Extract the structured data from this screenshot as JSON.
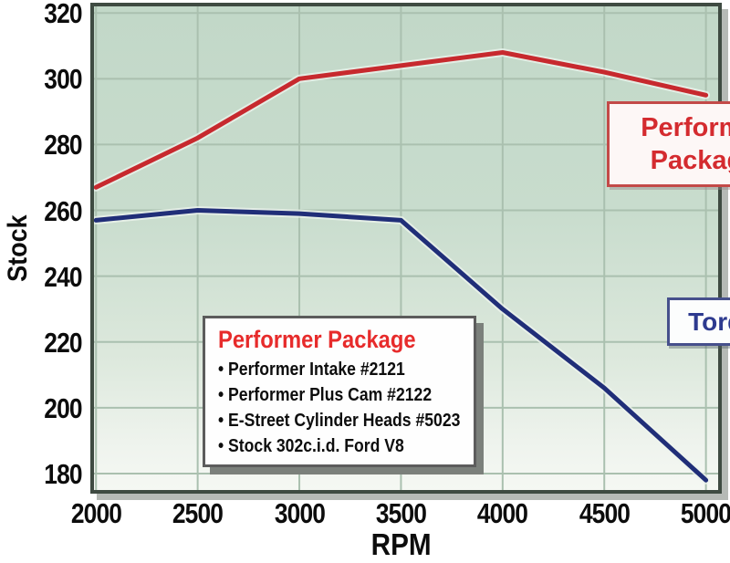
{
  "chart_data": {
    "type": "line",
    "title": "",
    "xlabel": "RPM",
    "ylabel": "Stock",
    "x": [
      2000,
      2500,
      3000,
      3500,
      4000,
      4500,
      5000
    ],
    "series": [
      {
        "name": "Performer Package",
        "color": "#c7292e",
        "values": [
          267,
          282,
          300,
          304,
          308,
          302,
          295
        ]
      },
      {
        "name": "Torque (Stock)",
        "color": "#202e78",
        "values": [
          257,
          260,
          259,
          257,
          230,
          206,
          178
        ]
      }
    ],
    "xticks": [
      2000,
      2500,
      3000,
      3500,
      4000,
      4500,
      5000
    ],
    "yticks": [
      180,
      200,
      220,
      240,
      260,
      280,
      300,
      320
    ],
    "xlim": [
      1990,
      5060
    ],
    "ylim": [
      175,
      322
    ],
    "grid": true,
    "legend_position": "lower-left",
    "plot_bg_top": "#c2d8c8",
    "plot_bg_bottom": "#f5f8f3",
    "grid_color": "#aac0af"
  },
  "annotations": {
    "performer_box": {
      "line1": "Performer",
      "line2": "Package",
      "text_color": "#d42b2f",
      "border_color": "#c34a48"
    },
    "torque_box": {
      "label": "Torque",
      "text_color": "#2d3a8f",
      "border_color": "#46508c"
    }
  },
  "legend": {
    "title": "Performer Package",
    "title_color": "#e72b2b",
    "items": [
      "Performer Intake #2121",
      "Performer Plus Cam #2122",
      "E-Street Cylinder Heads #5023",
      "Stock 302c.i.d. Ford V8"
    ]
  },
  "axes": {
    "y_axis_title": "Stock",
    "x_axis_title": "RPM"
  }
}
